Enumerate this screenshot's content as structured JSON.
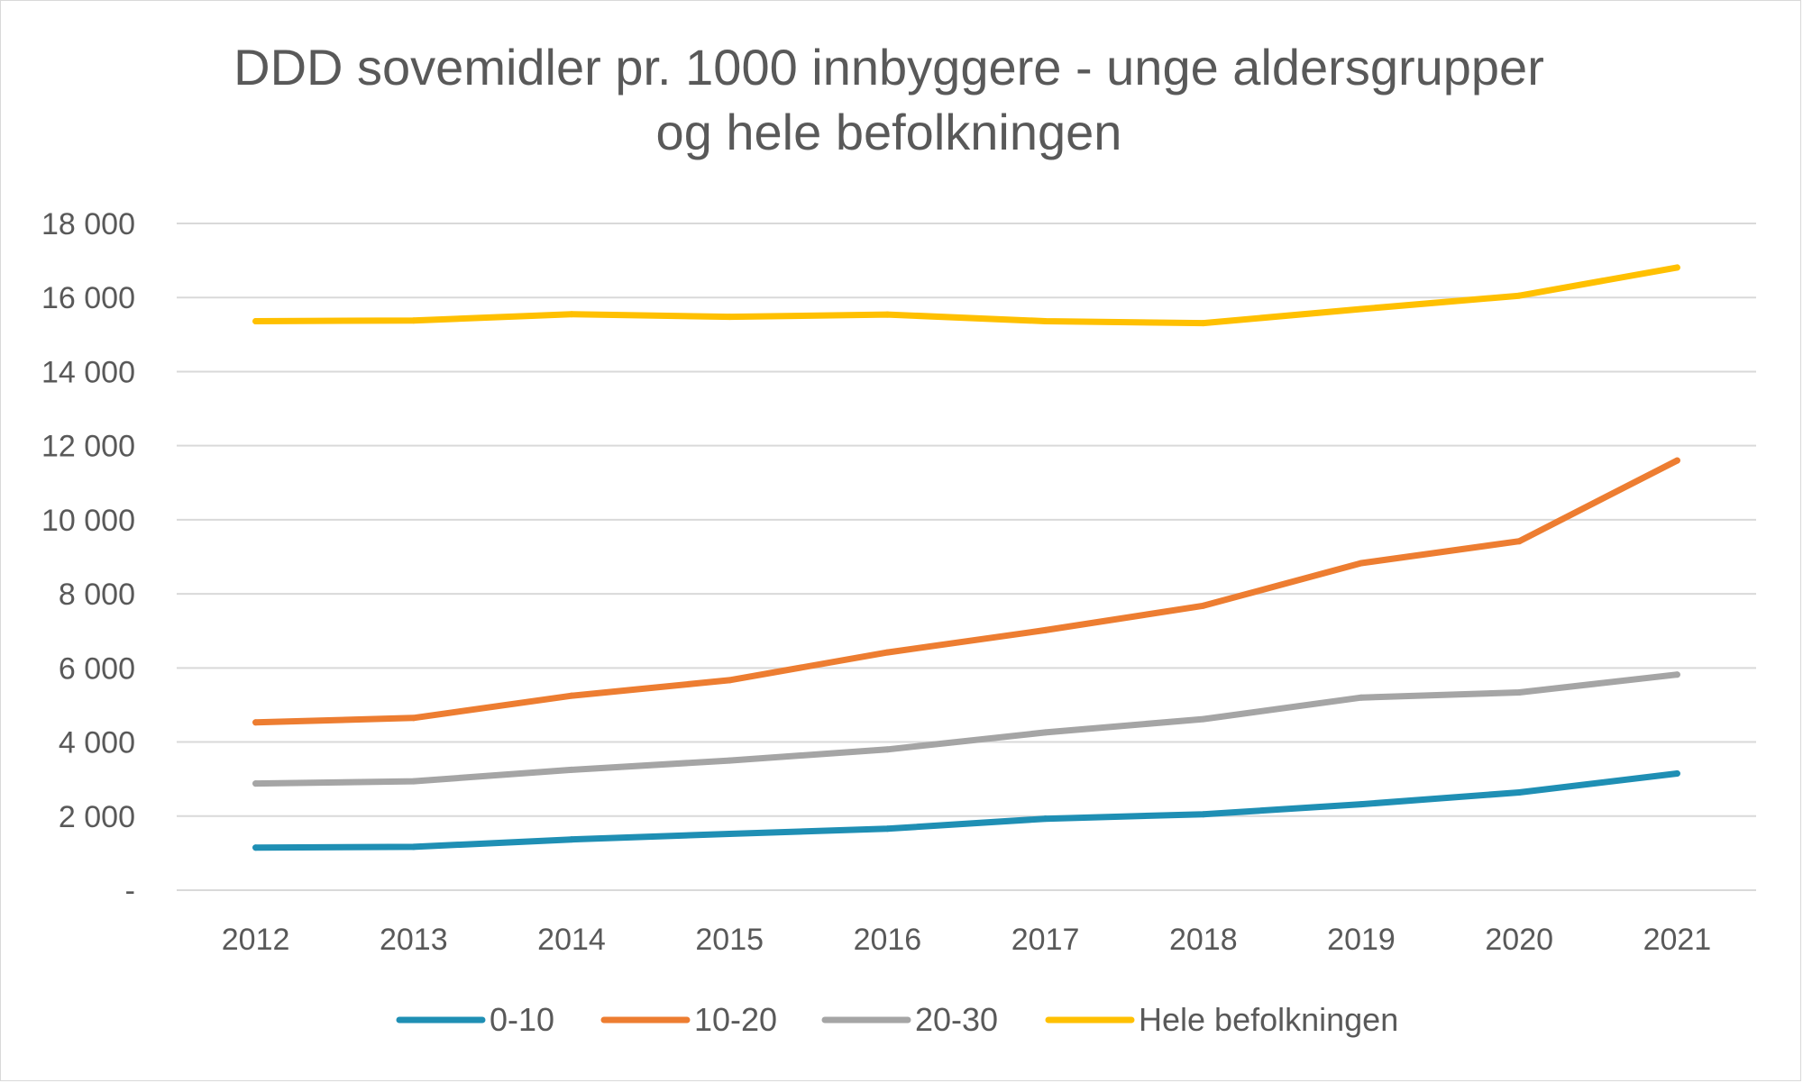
{
  "chart_data": {
    "type": "line",
    "title_lines": [
      "DDD sovemidler pr. 1000 innbyggere - unge aldersgrupper",
      "og hele befolkningen"
    ],
    "xlabel": "",
    "ylabel": "",
    "categories": [
      "2012",
      "2013",
      "2014",
      "2015",
      "2016",
      "2017",
      "2018",
      "2019",
      "2020",
      "2021"
    ],
    "ylim": [
      0,
      18000
    ],
    "yticks": [
      0,
      2000,
      4000,
      6000,
      8000,
      10000,
      12000,
      14000,
      16000,
      18000
    ],
    "ytick_labels": [
      "-",
      "2 000",
      "4 000",
      "6 000",
      "8 000",
      "10 000",
      "12 000",
      "14 000",
      "16 000",
      "18 000"
    ],
    "grid": true,
    "legend_position": "bottom",
    "series": [
      {
        "name": "0-10",
        "color": "#1f8fb4",
        "values": [
          1150,
          1170,
          1370,
          1520,
          1660,
          1930,
          2050,
          2320,
          2640,
          3150
        ]
      },
      {
        "name": "10-20",
        "color": "#ed7d31",
        "values": [
          4530,
          4650,
          5250,
          5670,
          6420,
          7020,
          7680,
          8830,
          9420,
          11600
        ]
      },
      {
        "name": "20-30",
        "color": "#a5a5a5",
        "values": [
          2880,
          2940,
          3250,
          3500,
          3800,
          4260,
          4620,
          5200,
          5340,
          5820
        ]
      },
      {
        "name": "Hele befolkningen",
        "color": "#ffc000",
        "values": [
          15360,
          15380,
          15550,
          15480,
          15540,
          15360,
          15310,
          15690,
          16050,
          16810
        ]
      }
    ]
  }
}
